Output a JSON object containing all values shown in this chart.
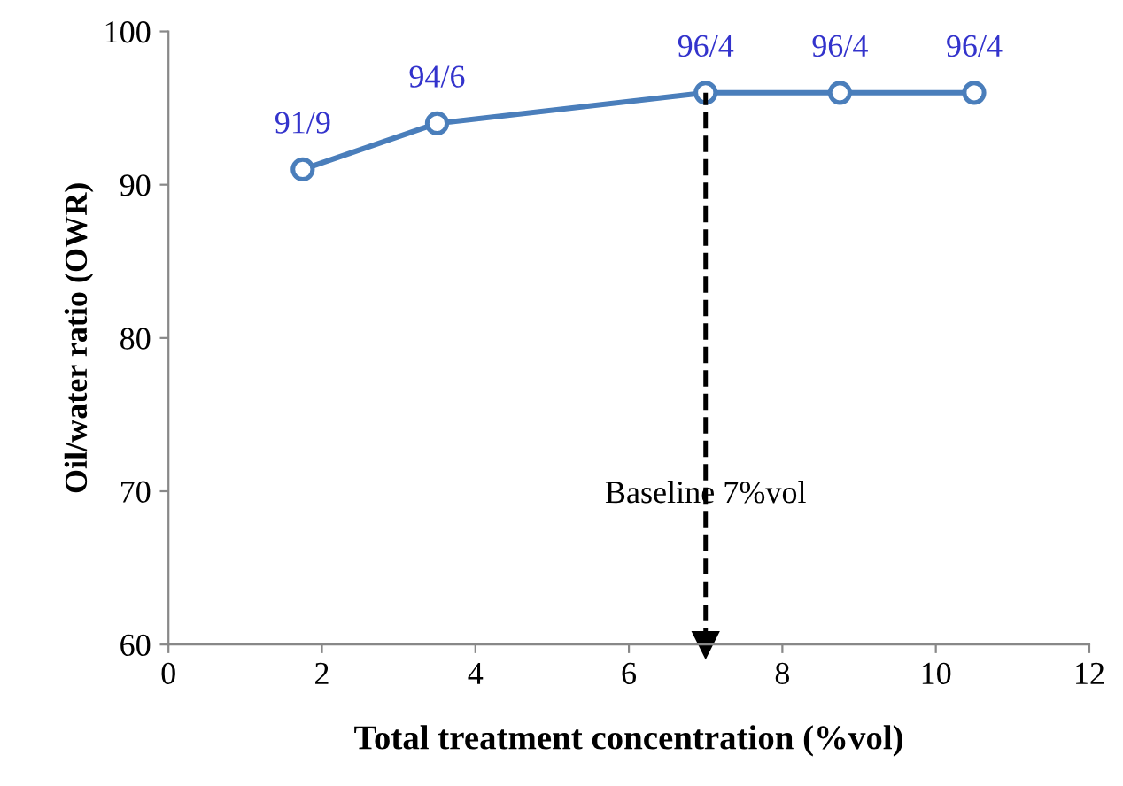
{
  "chart_data": {
    "type": "line",
    "xlabel": "Total treatment concentration (%vol)",
    "ylabel": "Oil/water ratio (OWR)",
    "x": [
      1.75,
      3.5,
      7,
      8.75,
      10.5
    ],
    "series": [
      {
        "color": "#4a7ebb",
        "values": [
          91,
          94,
          96,
          96,
          96
        ],
        "value_labels": [
          "91/9",
          "94/6",
          "96/4",
          "96/4",
          "96/4"
        ]
      }
    ],
    "xlim": [
      0,
      12
    ],
    "xticks": [
      0,
      2,
      4,
      6,
      8,
      10,
      12
    ],
    "ylim": [
      60,
      100
    ],
    "yticks": [
      60,
      70,
      80,
      90,
      100
    ],
    "marker": "circle",
    "line_style": "solid",
    "grid": false,
    "legend": false,
    "ref_lines": [
      {
        "axis": "x",
        "value": 7,
        "label": "Baseline 7%vol",
        "color": "#000000",
        "line_style": "dashed"
      }
    ]
  }
}
